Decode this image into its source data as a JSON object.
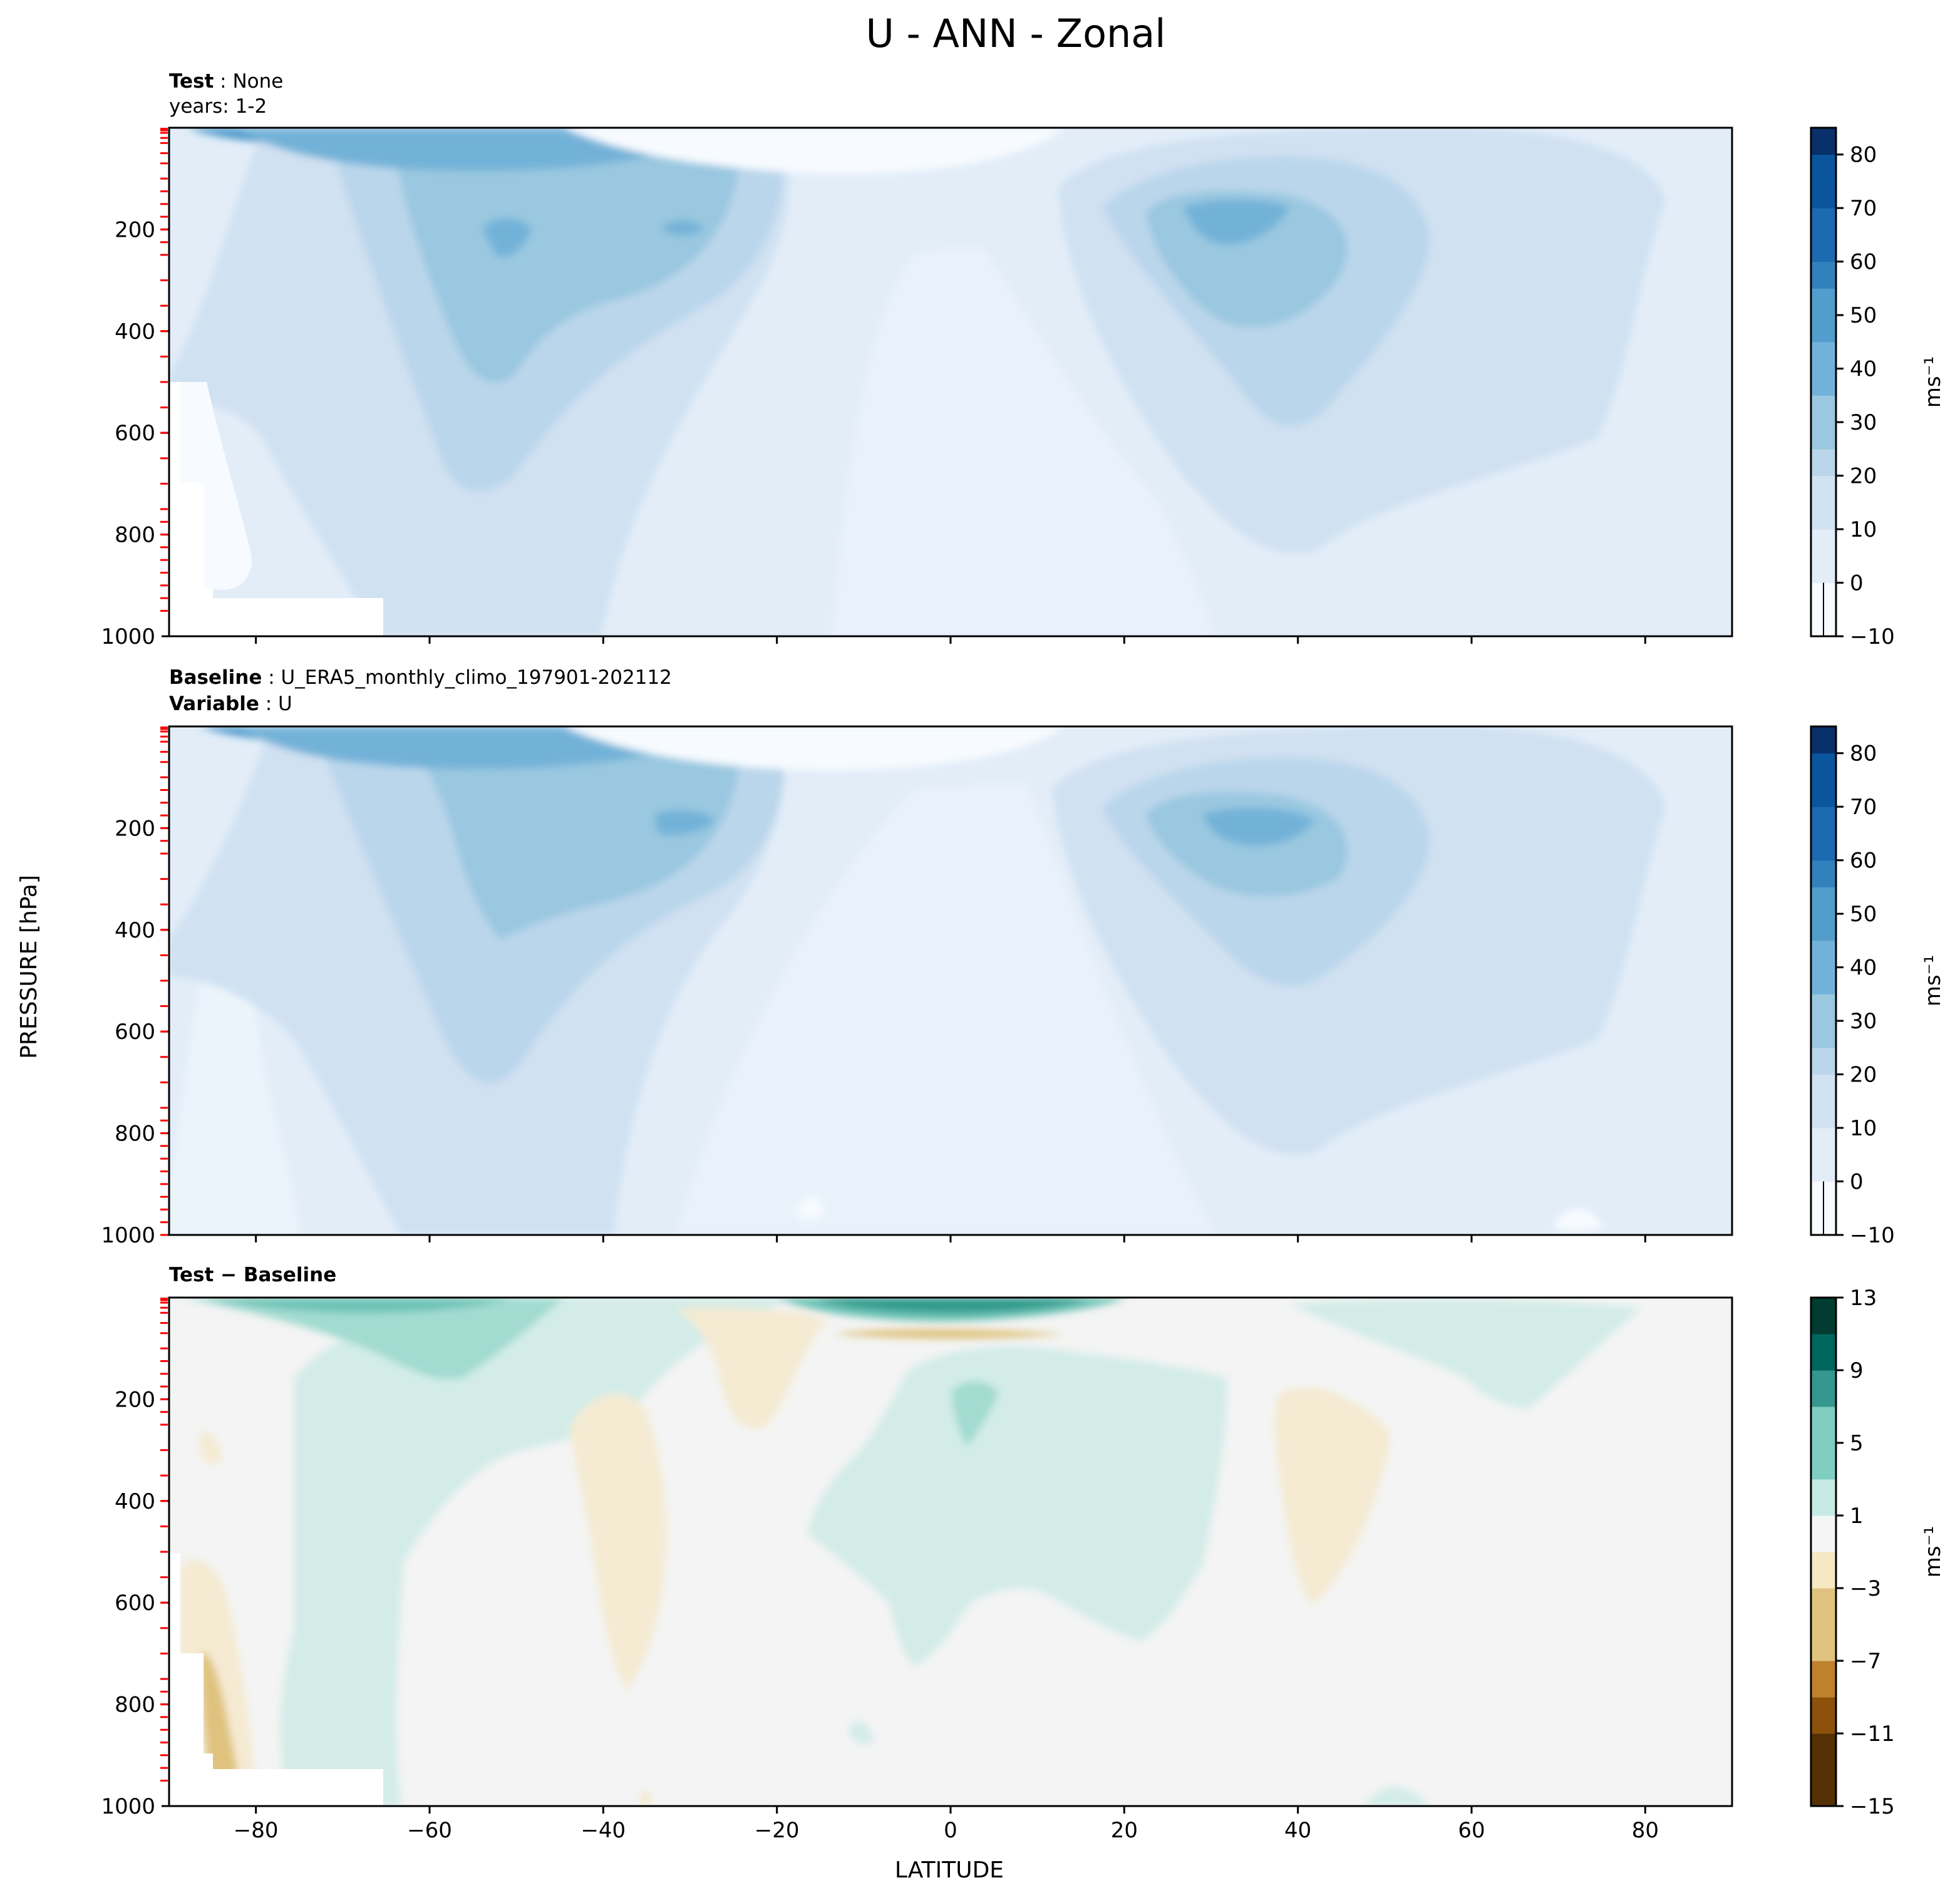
{
  "figure": {
    "suptitle": "U - ANN - Zonal",
    "xlabel": "LATITUDE",
    "ylabel": "PRESSURE [hPa]",
    "colors": {
      "blues": [
        "#f7fbff",
        "#e2edf8",
        "#d0e1f2",
        "#bad6eb",
        "#9ac8e0",
        "#73b2d8",
        "#529dcc",
        "#3181bd",
        "#1c6aaf",
        "#0b559f",
        "#08306b"
      ],
      "diff": [
        "#543005",
        "#8c510a",
        "#bf812d",
        "#dfc27d",
        "#f6e8c3",
        "#f5f5f5",
        "#c7eae5",
        "#80cdc1",
        "#35978f",
        "#01665e",
        "#003c30"
      ],
      "level_marker": "#ff0000"
    }
  },
  "panels": [
    {
      "id": "test",
      "annotation": [
        {
          "bold": "Test",
          "sep": " : ",
          "text": "None"
        },
        {
          "bold": "",
          "sep": "",
          "text": "years: 1-2"
        }
      ],
      "colorbar": {
        "label": "ms⁻¹",
        "ticks": [
          "80",
          "70",
          "60",
          "50",
          "40",
          "30",
          "20",
          "10",
          "0",
          "−10"
        ]
      }
    },
    {
      "id": "baseline",
      "annotation": [
        {
          "bold": "Baseline",
          "sep": " : ",
          "text": "U_ERA5_monthly_climo_197901-202112"
        },
        {
          "bold": "Variable",
          "sep": " : ",
          "text": "U"
        }
      ],
      "colorbar": {
        "label": "ms⁻¹",
        "ticks": [
          "80",
          "70",
          "60",
          "50",
          "40",
          "30",
          "20",
          "10",
          "0",
          "−10"
        ]
      }
    },
    {
      "id": "diff",
      "annotation": [
        {
          "bold": "Test − Baseline",
          "sep": "",
          "text": ""
        }
      ],
      "colorbar": {
        "label": "ms⁻¹",
        "ticks": [
          "13",
          "9",
          "5",
          "1",
          "−3",
          "−7",
          "−11",
          "−15"
        ]
      }
    }
  ],
  "chart_data": [
    {
      "type": "heatmap",
      "panel": "test",
      "x_axis": {
        "ticks": [
          -80,
          -60,
          -40,
          -20,
          0,
          20,
          40,
          60,
          80
        ],
        "range": [
          -90,
          90
        ]
      },
      "y_axis": {
        "ticks": [
          200,
          400,
          600,
          800,
          1000
        ],
        "range": [
          1000,
          0
        ],
        "inverted": true
      },
      "colorbar": {
        "ticks": [
          -10,
          0,
          10,
          20,
          30,
          40,
          50,
          60,
          70,
          80
        ],
        "levels_min": -10,
        "levels_max": 85
      },
      "features": [
        {
          "feature": "SH jet max",
          "lat": -52,
          "pressure": 200,
          "value": 35
        },
        {
          "feature": "SH secondary max",
          "lat": -30,
          "pressure": 200,
          "value": 35
        },
        {
          "feature": "NH jet max",
          "lat": 35,
          "pressure": 200,
          "value": 30
        },
        {
          "feature": "stratospheric max",
          "lat": -60,
          "pressure": 10,
          "value": 45
        },
        {
          "feature": "equatorial easterlies",
          "lat": 0,
          "pressure": 700,
          "value": -5
        },
        {
          "feature": "masked region (no data)",
          "lat": -88,
          "pressure": 950
        }
      ]
    },
    {
      "type": "heatmap",
      "panel": "baseline",
      "x_axis": {
        "ticks": [
          -80,
          -60,
          -40,
          -20,
          0,
          20,
          40,
          60,
          80
        ],
        "range": [
          -90,
          90
        ]
      },
      "y_axis": {
        "ticks": [
          200,
          400,
          600,
          800,
          1000
        ],
        "range": [
          1000,
          0
        ],
        "inverted": true
      },
      "colorbar": {
        "ticks": [
          -10,
          0,
          10,
          20,
          30,
          40,
          50,
          60,
          70,
          80
        ],
        "levels_min": -10,
        "levels_max": 85
      },
      "features": [
        {
          "feature": "SH jet max",
          "lat": -32,
          "pressure": 200,
          "value": 35
        },
        {
          "feature": "NH jet max",
          "lat": 33,
          "pressure": 200,
          "value": 35
        },
        {
          "feature": "stratospheric max",
          "lat": -60,
          "pressure": 10,
          "value": 45
        },
        {
          "feature": "equatorial easterlies",
          "lat": 0,
          "pressure": 700,
          "value": -5
        }
      ]
    },
    {
      "type": "heatmap",
      "panel": "diff",
      "x_axis": {
        "ticks": [
          -80,
          -60,
          -40,
          -20,
          0,
          20,
          40,
          60,
          80
        ],
        "range": [
          -90,
          90
        ]
      },
      "y_axis": {
        "ticks": [
          200,
          400,
          600,
          800,
          1000
        ],
        "range": [
          1000,
          0
        ],
        "inverted": true
      },
      "colorbar": {
        "ticks": [
          -15,
          -11,
          -7,
          -3,
          1,
          5,
          9,
          13
        ],
        "levels_min": -15,
        "levels_max": 13
      },
      "features": [
        {
          "feature": "SH strat positive",
          "lat": -70,
          "pressure": 50,
          "value": 7
        },
        {
          "feature": "tropical strat positive",
          "lat": 5,
          "pressure": 10,
          "value": 9
        },
        {
          "feature": "tropical positive",
          "lat": 2,
          "pressure": 220,
          "value": 5
        },
        {
          "feature": "NH midlat negative",
          "lat": 45,
          "pressure": 350,
          "value": -3
        },
        {
          "feature": "SH subtropical negative",
          "lat": -35,
          "pressure": 400,
          "value": -3
        },
        {
          "feature": "Antarctic surface negative",
          "lat": -82,
          "pressure": 850,
          "value": -7
        }
      ]
    }
  ]
}
